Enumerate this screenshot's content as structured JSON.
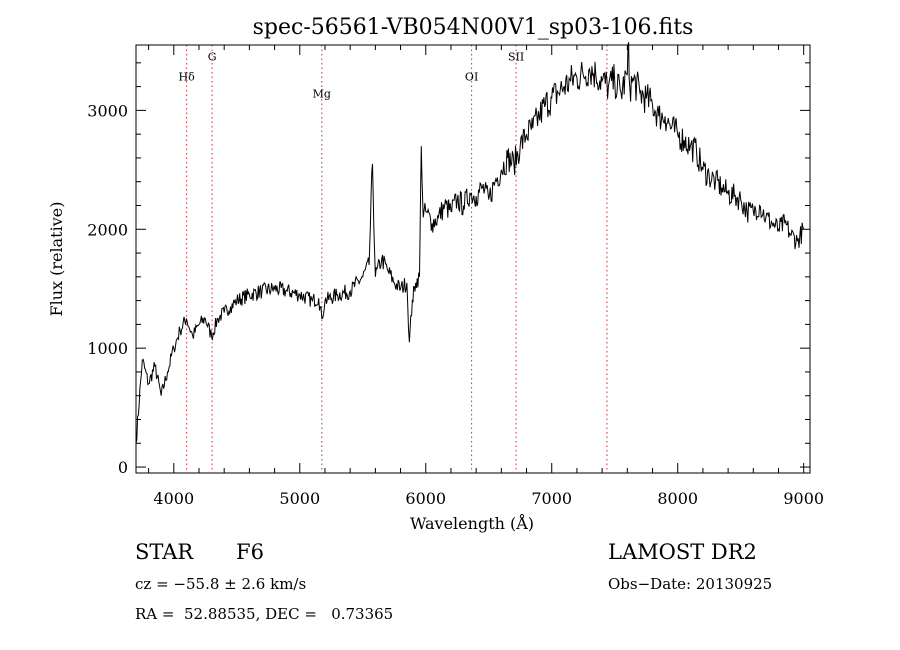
{
  "chart_data": {
    "type": "line",
    "title": "spec-56561-VB054N00V1_sp03-106.fits",
    "xlabel": "Wavelength (Å)",
    "ylabel": "Flux (relative)",
    "xlim": [
      3700,
      9050
    ],
    "ylim": [
      -50,
      3550
    ],
    "x_ticks": [
      4000,
      5000,
      6000,
      7000,
      8000,
      9000
    ],
    "y_ticks": [
      0,
      1000,
      2000,
      3000
    ],
    "grid": false,
    "line_color": "#000000",
    "marker_line_color": "#c83232",
    "spectral_lines": [
      {
        "label": "Hδ",
        "wavelength": 4102,
        "label_flux": 3250
      },
      {
        "label": "G",
        "wavelength": 4304,
        "label_flux": 3420
      },
      {
        "label": "Mg",
        "wavelength": 5175,
        "label_flux": 3110
      },
      {
        "label": "OI",
        "wavelength": 6364,
        "label_flux": 3250
      },
      {
        "label": "SII",
        "wavelength": 6717,
        "label_flux": 3420
      },
      {
        "label": "",
        "wavelength": 7438,
        "label_flux": 3420
      }
    ],
    "series": [
      {
        "name": "",
        "x": [
          3700,
          3750,
          3800,
          3850,
          3900,
          3950,
          4000,
          4050,
          4100,
          4150,
          4200,
          4250,
          4300,
          4350,
          4400,
          4450,
          4500,
          4600,
          4700,
          4800,
          4900,
          5000,
          5100,
          5150,
          5175,
          5200,
          5300,
          5400,
          5500,
          5550,
          5577,
          5600,
          5650,
          5700,
          5750,
          5800,
          5850,
          5870,
          5893,
          5920,
          5950,
          5965,
          5980,
          6000,
          6050,
          6100,
          6150,
          6200,
          6250,
          6300,
          6350,
          6400,
          6450,
          6500,
          6550,
          6600,
          6650,
          6700,
          6750,
          6800,
          6850,
          6900,
          6950,
          7000,
          7050,
          7100,
          7150,
          7200,
          7250,
          7300,
          7350,
          7400,
          7450,
          7500,
          7550,
          7600,
          7605,
          7620,
          7650,
          7700,
          7750,
          7800,
          7850,
          7900,
          7950,
          8000,
          8050,
          8100,
          8150,
          8200,
          8250,
          8300,
          8350,
          8400,
          8450,
          8500,
          8550,
          8600,
          8650,
          8700,
          8750,
          8800,
          8850,
          8900,
          8950,
          9000
        ],
        "values": [
          200,
          900,
          700,
          850,
          600,
          800,
          1000,
          1150,
          1250,
          1100,
          1200,
          1250,
          1100,
          1250,
          1300,
          1350,
          1400,
          1450,
          1480,
          1500,
          1480,
          1450,
          1400,
          1420,
          1250,
          1400,
          1450,
          1480,
          1600,
          1700,
          2550,
          1600,
          1750,
          1650,
          1550,
          1500,
          1550,
          1050,
          1400,
          1550,
          1600,
          2700,
          2100,
          2150,
          2050,
          2100,
          2200,
          2150,
          2250,
          2200,
          2300,
          2280,
          2350,
          2250,
          2400,
          2500,
          2600,
          2550,
          2700,
          2800,
          2850,
          2950,
          3050,
          3100,
          3150,
          3200,
          3250,
          3280,
          3300,
          3350,
          3300,
          3250,
          3200,
          3250,
          3150,
          3300,
          3550,
          3200,
          3250,
          3150,
          3100,
          3050,
          2950,
          2950,
          2850,
          2800,
          2750,
          2700,
          2650,
          2500,
          2450,
          2400,
          2350,
          2300,
          2280,
          2250,
          2150,
          2150,
          2200,
          2100,
          2050,
          2000,
          2050,
          1950,
          1900,
          2000
        ]
      }
    ]
  },
  "info": {
    "object_class": "STAR",
    "subclass": "F6",
    "survey": "LAMOST DR2",
    "redshift": "cz = −55.8 ± 2.6 km/s",
    "obs_date": "Obs−Date: 20130925",
    "coords": "RA =  52.88535, DEC =   0.73365"
  }
}
